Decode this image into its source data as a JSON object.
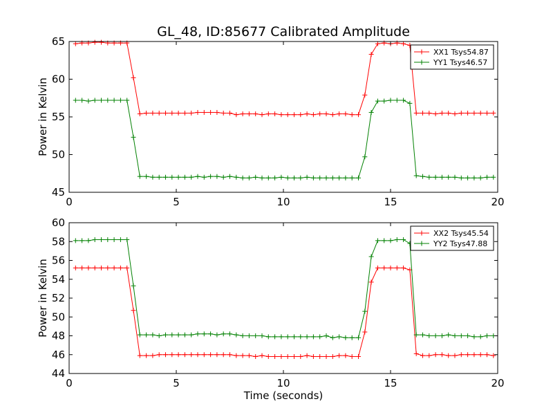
{
  "chart_data": [
    {
      "type": "line",
      "title": "GL_48, ID:85677 Calibrated Amplitude",
      "xlabel": "",
      "ylabel": "Power in Kelvin",
      "xlim": [
        0,
        20
      ],
      "ylim": [
        45,
        65
      ],
      "xticks": [
        "0",
        "5",
        "10",
        "15",
        "20"
      ],
      "yticks": [
        "45",
        "50",
        "55",
        "60",
        "65"
      ],
      "legend_position": "top-right",
      "grid": false,
      "x": [
        0.3,
        0.6,
        0.9,
        1.2,
        1.5,
        1.8,
        2.1,
        2.4,
        2.7,
        3.0,
        3.3,
        3.6,
        3.9,
        4.2,
        4.5,
        4.8,
        5.1,
        5.4,
        5.7,
        6.0,
        6.3,
        6.6,
        6.9,
        7.2,
        7.5,
        7.8,
        8.1,
        8.4,
        8.7,
        9.0,
        9.3,
        9.6,
        9.9,
        10.2,
        10.5,
        10.8,
        11.1,
        11.4,
        11.7,
        12.0,
        12.3,
        12.6,
        12.9,
        13.2,
        13.5,
        13.8,
        14.1,
        14.4,
        14.7,
        15.0,
        15.3,
        15.6,
        15.9,
        16.2,
        16.5,
        16.8,
        17.1,
        17.4,
        17.7,
        18.0,
        18.3,
        18.6,
        18.9,
        19.2,
        19.5,
        19.8
      ],
      "series": [
        {
          "name": "XX1 Tsys54.87",
          "color": "#ff0000",
          "values": [
            64.7,
            64.8,
            64.8,
            64.9,
            64.9,
            64.8,
            64.8,
            64.8,
            64.8,
            60.2,
            55.4,
            55.5,
            55.5,
            55.5,
            55.5,
            55.5,
            55.5,
            55.5,
            55.5,
            55.6,
            55.6,
            55.6,
            55.6,
            55.5,
            55.5,
            55.3,
            55.4,
            55.4,
            55.4,
            55.3,
            55.4,
            55.4,
            55.3,
            55.3,
            55.3,
            55.3,
            55.4,
            55.3,
            55.4,
            55.4,
            55.3,
            55.4,
            55.4,
            55.3,
            55.3,
            57.9,
            63.3,
            64.7,
            64.8,
            64.7,
            64.8,
            64.7,
            64.5,
            55.5,
            55.5,
            55.5,
            55.4,
            55.5,
            55.5,
            55.4,
            55.5,
            55.5,
            55.5,
            55.5,
            55.5,
            55.5
          ]
        },
        {
          "name": "YY1 Tsys46.57",
          "color": "#008000",
          "values": [
            57.2,
            57.2,
            57.1,
            57.2,
            57.2,
            57.2,
            57.2,
            57.2,
            57.2,
            52.3,
            47.1,
            47.1,
            47.0,
            47.0,
            47.0,
            47.0,
            47.0,
            47.0,
            47.0,
            47.1,
            47.0,
            47.1,
            47.1,
            47.0,
            47.1,
            47.0,
            46.9,
            46.9,
            47.0,
            46.9,
            46.9,
            46.9,
            47.0,
            46.9,
            46.9,
            46.9,
            47.0,
            46.9,
            46.9,
            46.9,
            46.9,
            46.9,
            46.9,
            46.9,
            46.9,
            49.7,
            55.6,
            57.1,
            57.1,
            57.2,
            57.2,
            57.2,
            56.8,
            47.2,
            47.1,
            47.0,
            47.0,
            47.0,
            47.0,
            47.0,
            46.9,
            46.9,
            46.9,
            46.9,
            47.0,
            47.0
          ]
        }
      ]
    },
    {
      "type": "line",
      "title": "",
      "xlabel": "Time (seconds)",
      "ylabel": "Power in Kelvin",
      "xlim": [
        0,
        20
      ],
      "ylim": [
        44,
        60
      ],
      "xticks": [
        "0",
        "5",
        "10",
        "15",
        "20"
      ],
      "yticks": [
        "44",
        "46",
        "48",
        "50",
        "52",
        "54",
        "56",
        "58",
        "60"
      ],
      "legend_position": "top-right",
      "grid": false,
      "x": [
        0.3,
        0.6,
        0.9,
        1.2,
        1.5,
        1.8,
        2.1,
        2.4,
        2.7,
        3.0,
        3.3,
        3.6,
        3.9,
        4.2,
        4.5,
        4.8,
        5.1,
        5.4,
        5.7,
        6.0,
        6.3,
        6.6,
        6.9,
        7.2,
        7.5,
        7.8,
        8.1,
        8.4,
        8.7,
        9.0,
        9.3,
        9.6,
        9.9,
        10.2,
        10.5,
        10.8,
        11.1,
        11.4,
        11.7,
        12.0,
        12.3,
        12.6,
        12.9,
        13.2,
        13.5,
        13.8,
        14.1,
        14.4,
        14.7,
        15.0,
        15.3,
        15.6,
        15.9,
        16.2,
        16.5,
        16.8,
        17.1,
        17.4,
        17.7,
        18.0,
        18.3,
        18.6,
        18.9,
        19.2,
        19.5,
        19.8
      ],
      "series": [
        {
          "name": "XX2 Tsys45.54",
          "color": "#ff0000",
          "values": [
            55.2,
            55.2,
            55.2,
            55.2,
            55.2,
            55.2,
            55.2,
            55.2,
            55.2,
            50.7,
            45.9,
            45.9,
            45.9,
            46.0,
            46.0,
            46.0,
            46.0,
            46.0,
            46.0,
            46.0,
            46.0,
            46.0,
            46.0,
            46.0,
            46.0,
            45.9,
            45.9,
            45.9,
            45.8,
            45.9,
            45.8,
            45.8,
            45.8,
            45.8,
            45.8,
            45.8,
            45.9,
            45.8,
            45.8,
            45.8,
            45.8,
            45.9,
            45.9,
            45.8,
            45.8,
            48.4,
            53.7,
            55.2,
            55.2,
            55.2,
            55.2,
            55.2,
            55.0,
            46.1,
            45.9,
            45.9,
            46.0,
            46.0,
            45.9,
            45.9,
            46.0,
            46.0,
            46.0,
            46.0,
            46.0,
            45.9
          ]
        },
        {
          "name": "YY2 Tsys47.88",
          "color": "#008000",
          "values": [
            58.1,
            58.1,
            58.1,
            58.2,
            58.2,
            58.2,
            58.2,
            58.2,
            58.2,
            53.3,
            48.1,
            48.1,
            48.1,
            48.0,
            48.1,
            48.1,
            48.1,
            48.1,
            48.1,
            48.2,
            48.2,
            48.2,
            48.1,
            48.2,
            48.2,
            48.1,
            48.0,
            48.0,
            48.0,
            48.0,
            47.9,
            47.9,
            47.9,
            47.9,
            47.9,
            47.9,
            47.9,
            47.9,
            47.9,
            48.0,
            47.8,
            47.9,
            47.8,
            47.8,
            47.8,
            50.6,
            56.4,
            58.1,
            58.1,
            58.1,
            58.2,
            58.2,
            57.8,
            48.1,
            48.1,
            48.0,
            48.0,
            48.0,
            48.1,
            48.0,
            48.0,
            48.0,
            47.9,
            47.9,
            48.0,
            48.0
          ]
        }
      ]
    }
  ]
}
